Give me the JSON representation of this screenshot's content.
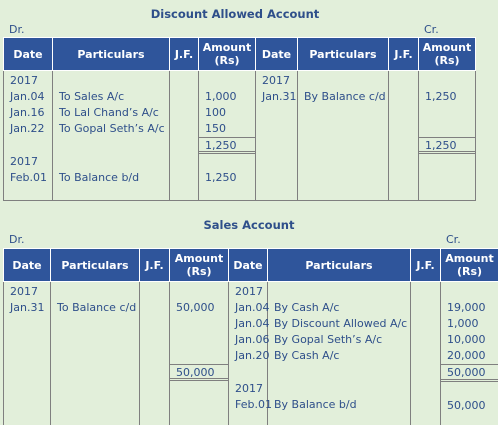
{
  "discount": {
    "title": "Discount Allowed Account",
    "dr": "Dr.",
    "cr": "Cr.",
    "headers": [
      "Date",
      "Particulars",
      "J.F.",
      "Amount (Rs)",
      "Date",
      "Particulars",
      "J.F.",
      "Amount (Rs)"
    ],
    "debit": [
      {
        "date": "2017",
        "particulars": "",
        "amount": ""
      },
      {
        "date": "Jan.04",
        "particulars": "To Sales A/c",
        "amount": "1,000"
      },
      {
        "date": "Jan.16",
        "particulars": "To Lal Chand’s A/c",
        "amount": "100"
      },
      {
        "date": "Jan.22",
        "particulars": "To Gopal Seth’s A/c",
        "amount": "150"
      }
    ],
    "debit_total": "1,250",
    "debit_after": [
      {
        "date": "2017",
        "particulars": "",
        "amount": ""
      },
      {
        "date": "Feb.01",
        "particulars": "To Balance b/d",
        "amount": "1,250"
      }
    ],
    "credit": [
      {
        "date": "2017",
        "particulars": "",
        "amount": ""
      },
      {
        "date": "Jan.31",
        "particulars": "By Balance c/d",
        "amount": "1,250"
      }
    ],
    "credit_total": "1,250"
  },
  "sales": {
    "title": "Sales Account",
    "dr": "Dr.",
    "cr": "Cr.",
    "headers": [
      "Date",
      "Particulars",
      "J.F.",
      "Amount (Rs)",
      "Date",
      "Particulars",
      "J.F.",
      "Amount (Rs)"
    ],
    "debit": [
      {
        "date": "2017",
        "particulars": "",
        "amount": ""
      },
      {
        "date": "Jan.31",
        "particulars": "To Balance c/d",
        "amount": "50,000"
      }
    ],
    "debit_total": "50,000",
    "credit": [
      {
        "date": "2017",
        "particulars": "",
        "amount": ""
      },
      {
        "date": "Jan.04",
        "particulars": "By Cash A/c",
        "amount": "19,000"
      },
      {
        "date": "Jan.04",
        "particulars": "By Discount Allowed A/c",
        "amount": "1,000"
      },
      {
        "date": "Jan.06",
        "particulars": "By Gopal Seth’s A/c",
        "amount": "10,000"
      },
      {
        "date": "Jan.20",
        "particulars": "By Cash A/c",
        "amount": "20,000"
      }
    ],
    "credit_total": "50,000",
    "credit_after": [
      {
        "date": "2017",
        "particulars": "",
        "amount": ""
      },
      {
        "date": "Feb.01",
        "particulars": "By Balance b/d",
        "amount": "50,000"
      }
    ]
  }
}
